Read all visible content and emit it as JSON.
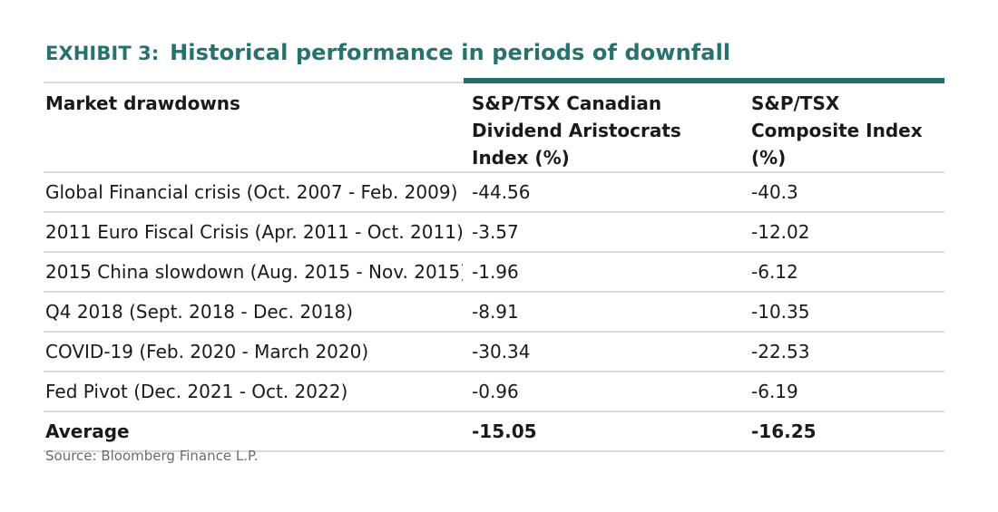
{
  "title": {
    "prefix": "EXHIBIT 3:",
    "text": "Historical performance in periods of downfall"
  },
  "table": {
    "headers": [
      "Market drawdowns",
      "S&P/TSX Canadian Dividend Aristocrats Index (%)",
      "S&P/TSX Composite Index (%)"
    ],
    "rows": [
      [
        "Global Financial crisis (Oct. 2007 - Feb. 2009)",
        "-44.56",
        "-40.3"
      ],
      [
        "2011 Euro Fiscal Crisis (Apr. 2011 - Oct. 2011)",
        "-3.57",
        "-12.02"
      ],
      [
        "2015 China slowdown (Aug. 2015 - Nov. 2015)",
        "-1.96",
        "-6.12"
      ],
      [
        "Q4 2018 (Sept. 2018 - Dec. 2018)",
        "-8.91",
        "-10.35"
      ],
      [
        "COVID-19 (Feb. 2020 - March 2020)",
        "-30.34",
        "-22.53"
      ],
      [
        "Fed Pivot (Dec. 2021 - Oct. 2022)",
        "-0.96",
        "-6.19"
      ]
    ],
    "average": [
      "Average",
      "-15.05",
      "-16.25"
    ]
  },
  "source": "Source: Bloomberg Finance L.P.",
  "colors": {
    "accent": "#25726f",
    "bar": "#1f6e6c",
    "rule": "#d9dcdc"
  }
}
